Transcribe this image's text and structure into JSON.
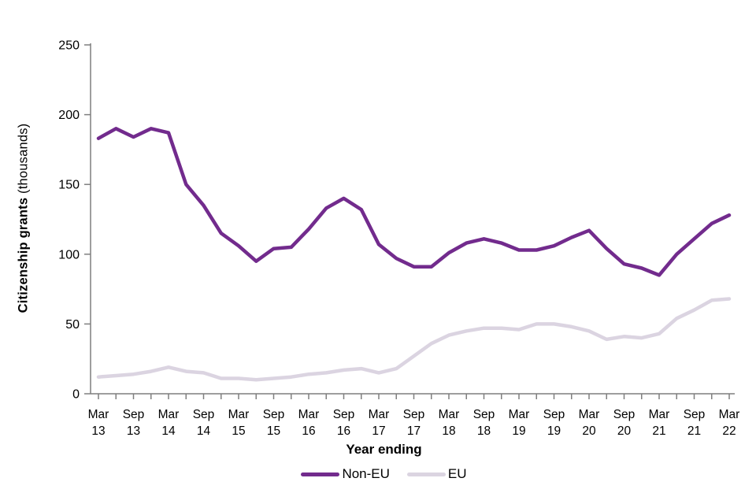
{
  "chart_data": {
    "type": "line",
    "title": "",
    "x_axis_title": "Year ending",
    "y_axis_title_bold": "Citizenship grants",
    "y_axis_title_normal": " (thousands)",
    "frequency": "quarterly",
    "x_start": "Mar 13",
    "x_end": "Mar 22",
    "x_tick_labels": [
      [
        "Mar",
        "13"
      ],
      [
        "Sep",
        "13"
      ],
      [
        "Mar",
        "14"
      ],
      [
        "Sep",
        "14"
      ],
      [
        "Mar",
        "15"
      ],
      [
        "Sep",
        "15"
      ],
      [
        "Mar",
        "16"
      ],
      [
        "Sep",
        "16"
      ],
      [
        "Mar",
        "17"
      ],
      [
        "Sep",
        "17"
      ],
      [
        "Mar",
        "18"
      ],
      [
        "Sep",
        "18"
      ],
      [
        "Mar",
        "19"
      ],
      [
        "Sep",
        "19"
      ],
      [
        "Mar",
        "20"
      ],
      [
        "Sep",
        "20"
      ],
      [
        "Mar",
        "21"
      ],
      [
        "Sep",
        "21"
      ],
      [
        "Mar",
        "22"
      ]
    ],
    "y_ticks": [
      0,
      50,
      100,
      150,
      200,
      250
    ],
    "ylim": [
      0,
      250
    ],
    "grid": false,
    "legend_position": "bottom",
    "series": [
      {
        "name": "Non-EU",
        "color": "#722B8D",
        "values": [
          183,
          190,
          184,
          190,
          187,
          150,
          135,
          115,
          106,
          95,
          104,
          105,
          118,
          133,
          140,
          132,
          107,
          97,
          91,
          91,
          101,
          108,
          111,
          108,
          103,
          103,
          106,
          112,
          117,
          104,
          93,
          90,
          85,
          100,
          111,
          122,
          128
        ]
      },
      {
        "name": "EU",
        "color": "#DBD4E1",
        "values": [
          12,
          13,
          14,
          16,
          19,
          16,
          15,
          11,
          11,
          10,
          11,
          12,
          14,
          15,
          17,
          18,
          15,
          18,
          27,
          36,
          42,
          45,
          47,
          47,
          46,
          50,
          50,
          48,
          45,
          39,
          41,
          40,
          43,
          54,
          60,
          67,
          68
        ]
      }
    ]
  },
  "colors": {
    "axis": "#7F7F7F",
    "text": "#000000"
  }
}
